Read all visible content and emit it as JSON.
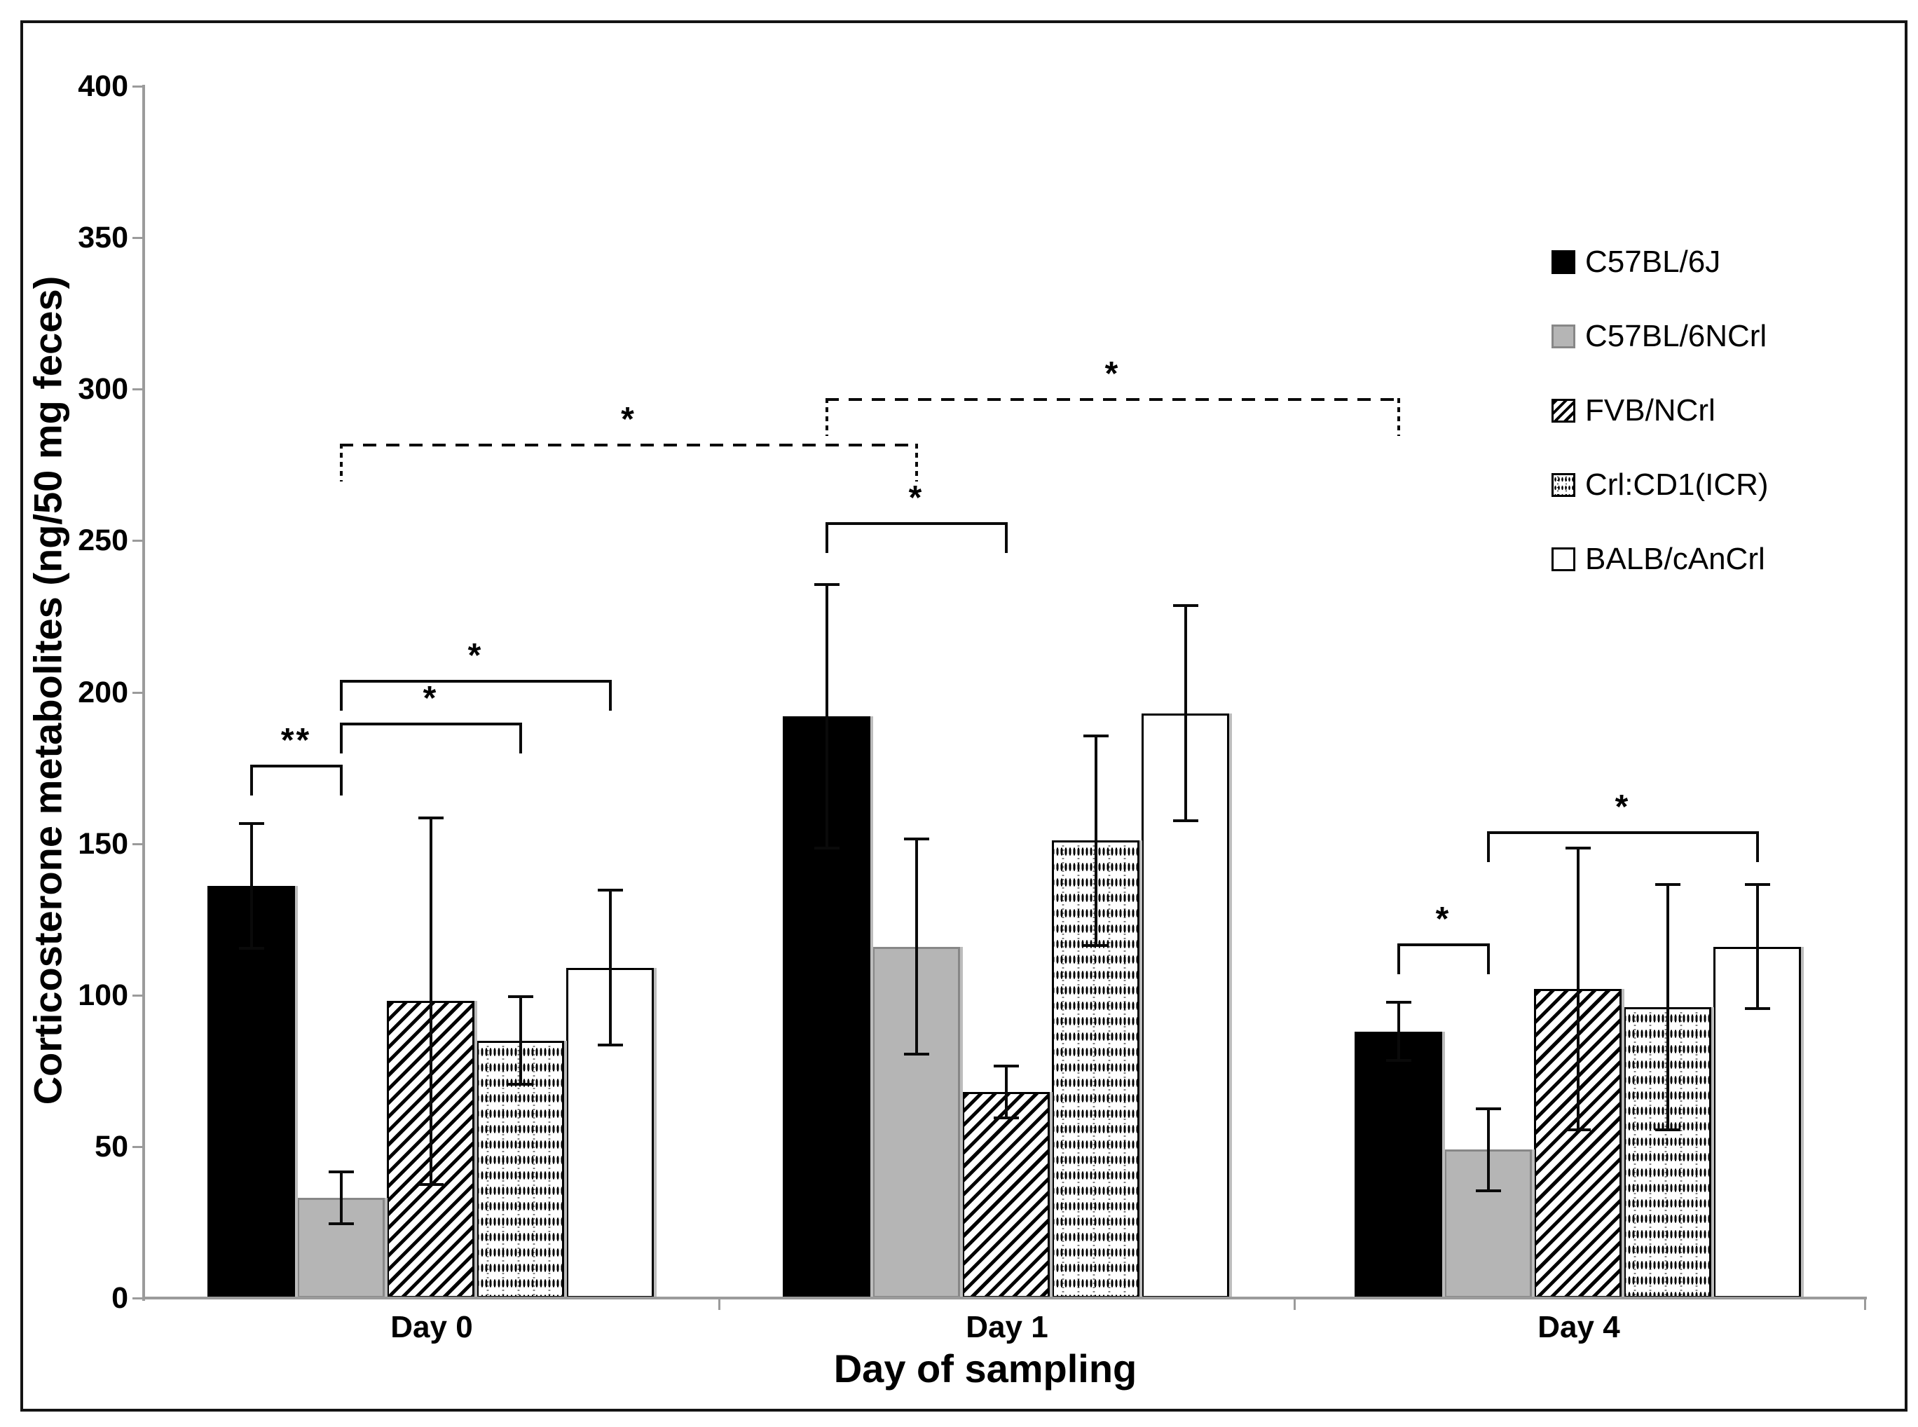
{
  "chart_data": {
    "type": "bar",
    "title": "",
    "categories": [
      "Day 0",
      "Day 1",
      "Day 4"
    ],
    "series": [
      {
        "name": "C57BL/6J",
        "pattern": "solid-black",
        "values": [
          136,
          192,
          88
        ],
        "errors": [
          21,
          44,
          10
        ]
      },
      {
        "name": "C57BL/6NCrl",
        "pattern": "solid-gray",
        "values": [
          33,
          116,
          49
        ],
        "errors": [
          9,
          36,
          14
        ]
      },
      {
        "name": "FVB/NCrl",
        "pattern": "diagonal-hatch",
        "values": [
          98,
          68,
          102
        ],
        "errors": [
          61,
          9,
          47
        ]
      },
      {
        "name": "Crl:CD1(ICR)",
        "pattern": "dotted-grid",
        "values": [
          85,
          151,
          96
        ],
        "errors": [
          15,
          35,
          41
        ]
      },
      {
        "name": "BALB/cAnCrl",
        "pattern": "white",
        "values": [
          109,
          193,
          116
        ],
        "errors": [
          26,
          36,
          21
        ]
      }
    ],
    "ylabel": "Corticosterone metabolites (ng/50 mg feces)",
    "xlabel": "Day of sampling",
    "ylim": [
      0,
      400
    ],
    "yticks": [
      0,
      50,
      100,
      150,
      200,
      250,
      300,
      350,
      400
    ],
    "grid": false,
    "legend_position": "upper-right",
    "significance": [
      {
        "style": "solid",
        "label": "**",
        "c1": 0,
        "s1": 0,
        "c2": 0,
        "s2": 1,
        "y": 176
      },
      {
        "style": "solid",
        "label": "*",
        "c1": 0,
        "s1": 1,
        "c2": 0,
        "s2": 3,
        "y": 190
      },
      {
        "style": "solid",
        "label": "*",
        "c1": 0,
        "s1": 1,
        "c2": 0,
        "s2": 4,
        "y": 204
      },
      {
        "style": "solid",
        "label": "*",
        "c1": 1,
        "s1": 0,
        "c2": 1,
        "s2": 2,
        "y": 256
      },
      {
        "style": "solid",
        "label": "*",
        "c1": 2,
        "s1": 0,
        "c2": 2,
        "s2": 1,
        "y": 117
      },
      {
        "style": "solid",
        "label": "*",
        "c1": 2,
        "s1": 1,
        "c2": 2,
        "s2": 4,
        "y": 154
      },
      {
        "style": "dashed",
        "label": "*",
        "c1": 0,
        "s1": 1,
        "c2": 1,
        "s2": 1,
        "y": 282
      },
      {
        "style": "dashed",
        "label": "*",
        "c1": 1,
        "s1": 0,
        "c2": 2,
        "s2": 0,
        "y": 297
      }
    ]
  },
  "colors": {
    "bar_black": "#000000",
    "bar_gray": "#b5b5b5",
    "gray_border": "#878787",
    "axis": "#9b9b9b",
    "text": "#000000",
    "shadow": "#bdbdbd",
    "background": "#ffffff"
  }
}
